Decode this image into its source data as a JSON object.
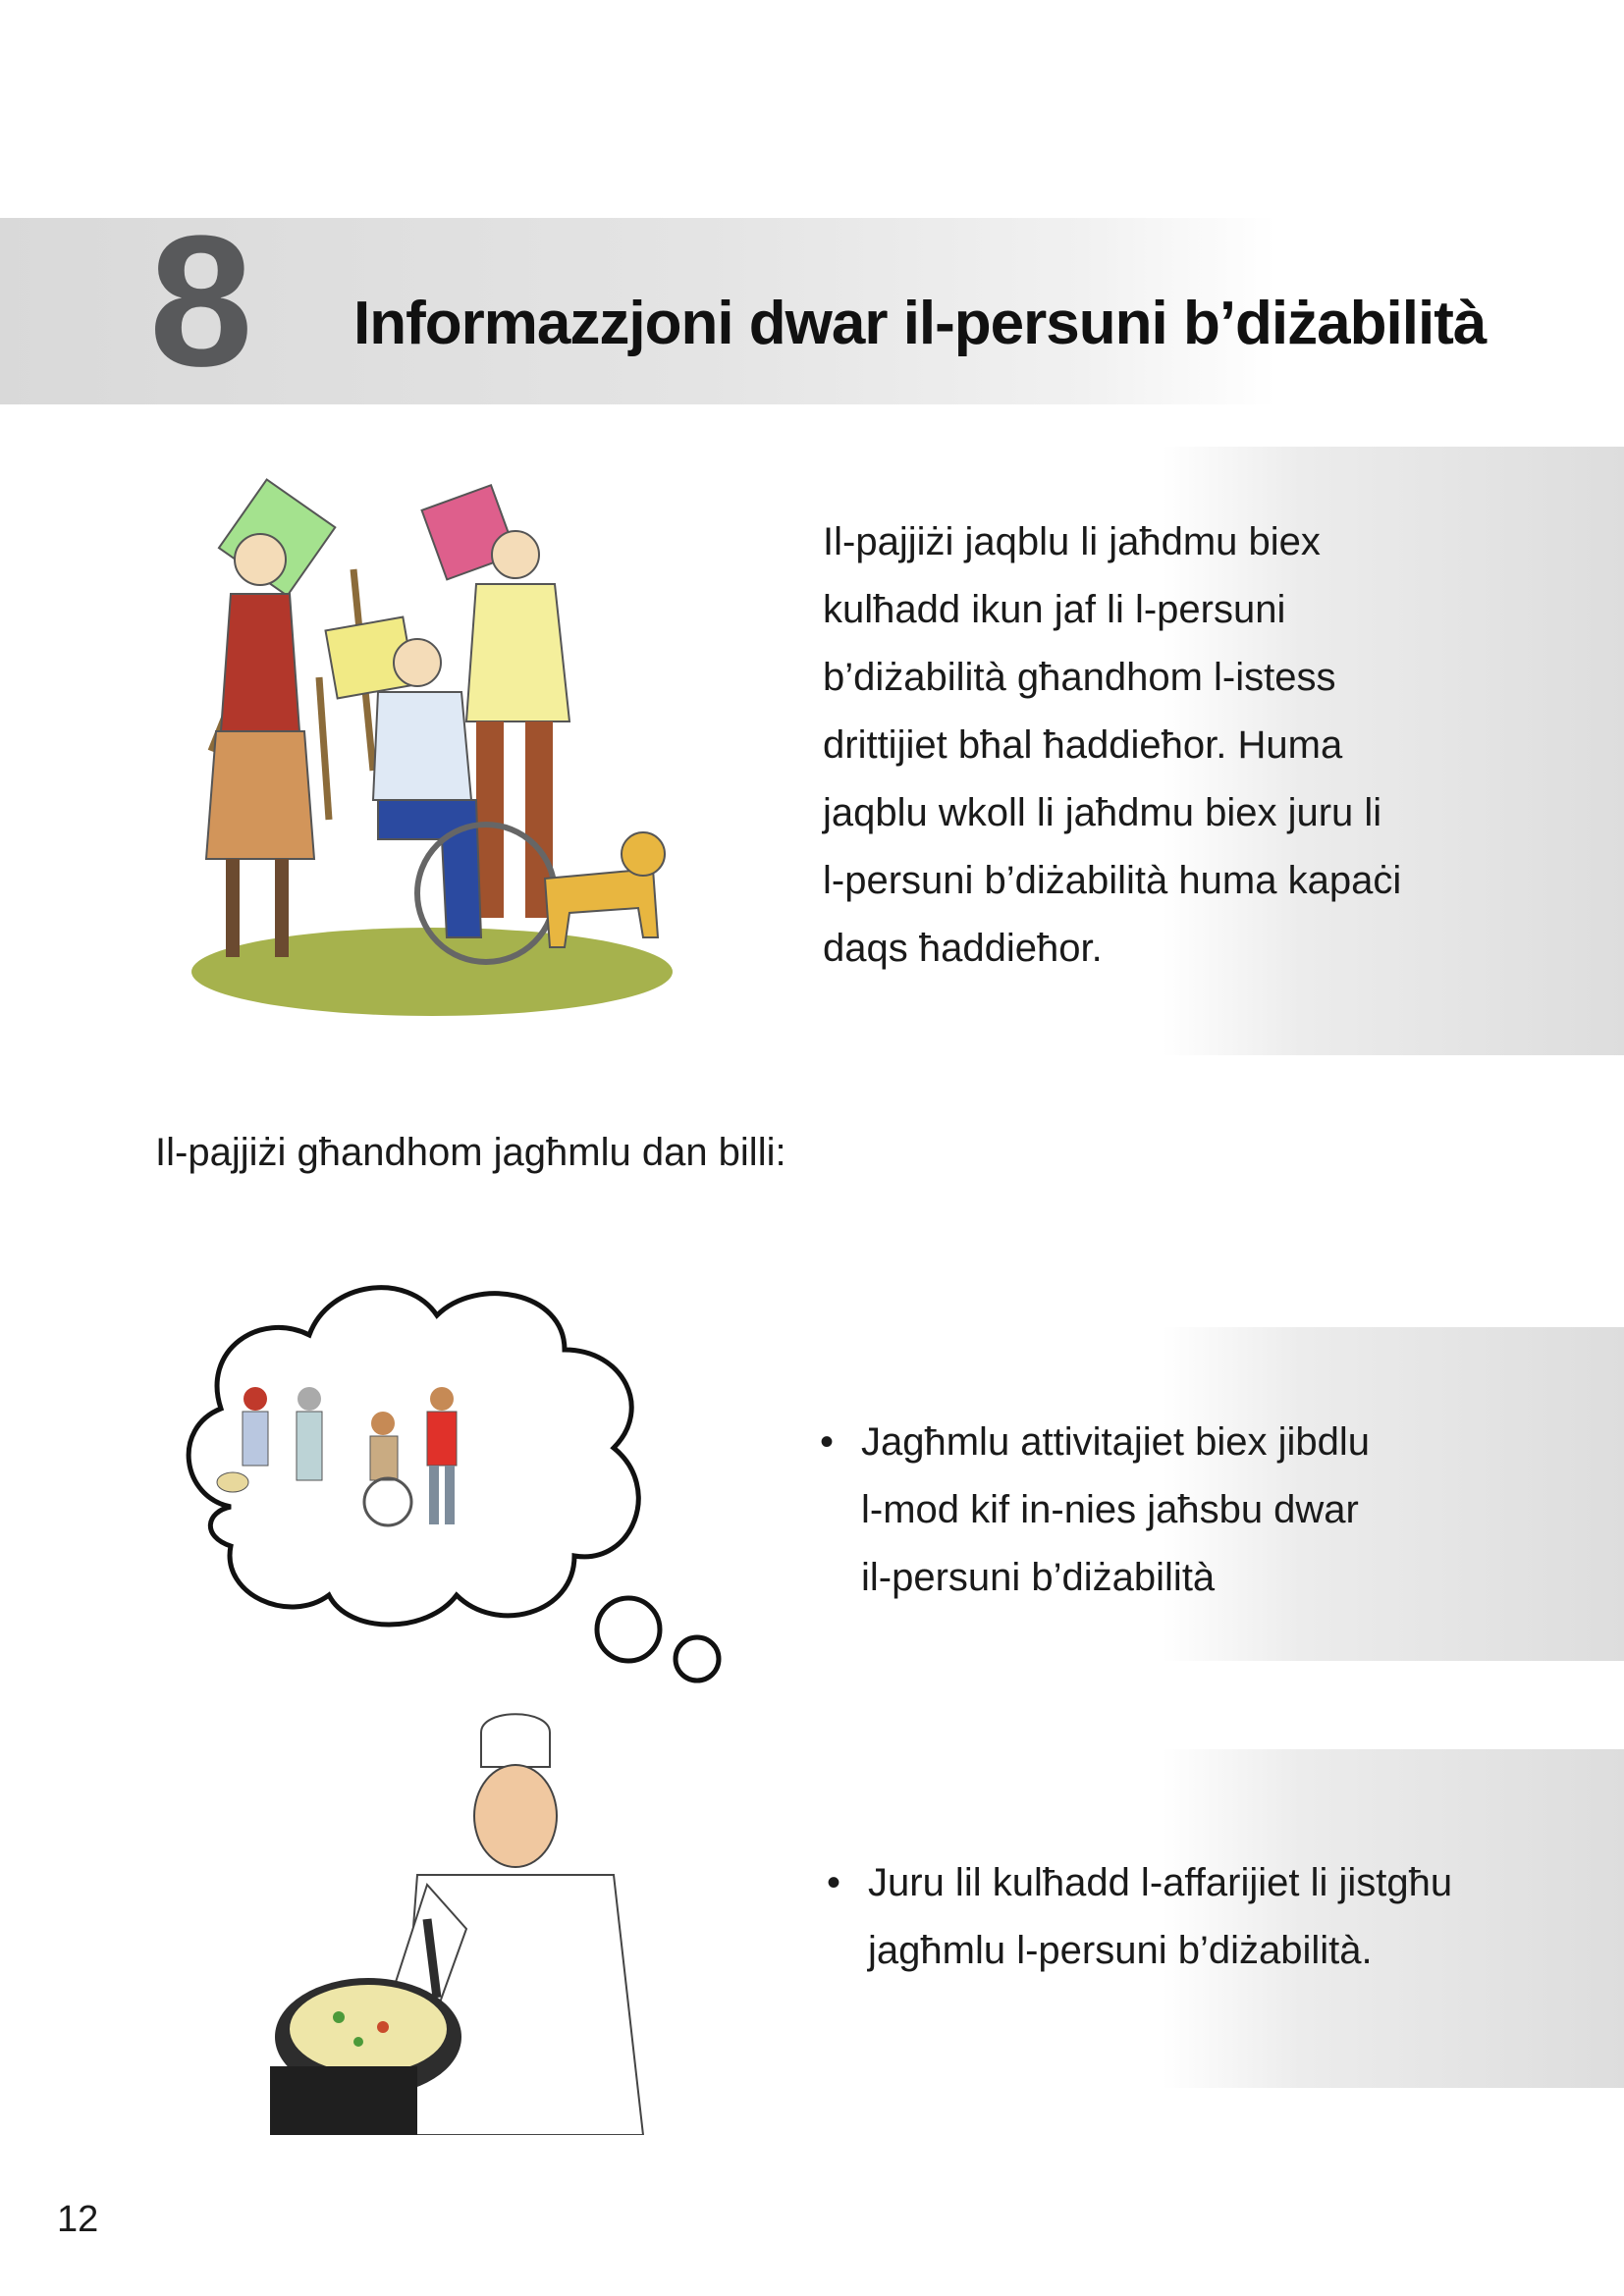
{
  "chapter": {
    "number": "8",
    "title": "Informazzjoni dwar il-persuni b’diżabilità"
  },
  "intro": {
    "lines": [
      "Il-pajjiżi jaqblu li jaħdmu biex",
      "kulħadd ikun jaf li l-persuni",
      "b’diżabilità għandhom l-istess",
      "drittijiet bħal ħaddieħor. Huma",
      "jaqblu wkoll li jaħdmu biex juru li",
      "l-persuni b’diżabilità huma kapaċi",
      "daqs ħaddieħor."
    ]
  },
  "lead": "Il-pajjiżi għandhom jagħmlu dan billi:",
  "bullets": [
    {
      "symbol": "•",
      "lines": [
        "Jagħmlu attivitajiet biex jibdlu",
        "l-mod kif in-nies jaħsbu dwar",
        "il-persuni b’diżabilità"
      ]
    },
    {
      "symbol": "•",
      "lines": [
        "Juru lil kulħadd l-affarijiet li jistgħu",
        "jagħmlu l-persuni b’diżabilità."
      ]
    }
  ],
  "illustrations": {
    "protest": "people-with-placards-icon",
    "thought": "thought-bubble-icon",
    "chef": "chef-cooking-icon"
  },
  "colors": {
    "header_band": "#dcdcdc",
    "chapter_number": "#58595b",
    "panel": "#e0e0e0"
  },
  "page_number": "12"
}
